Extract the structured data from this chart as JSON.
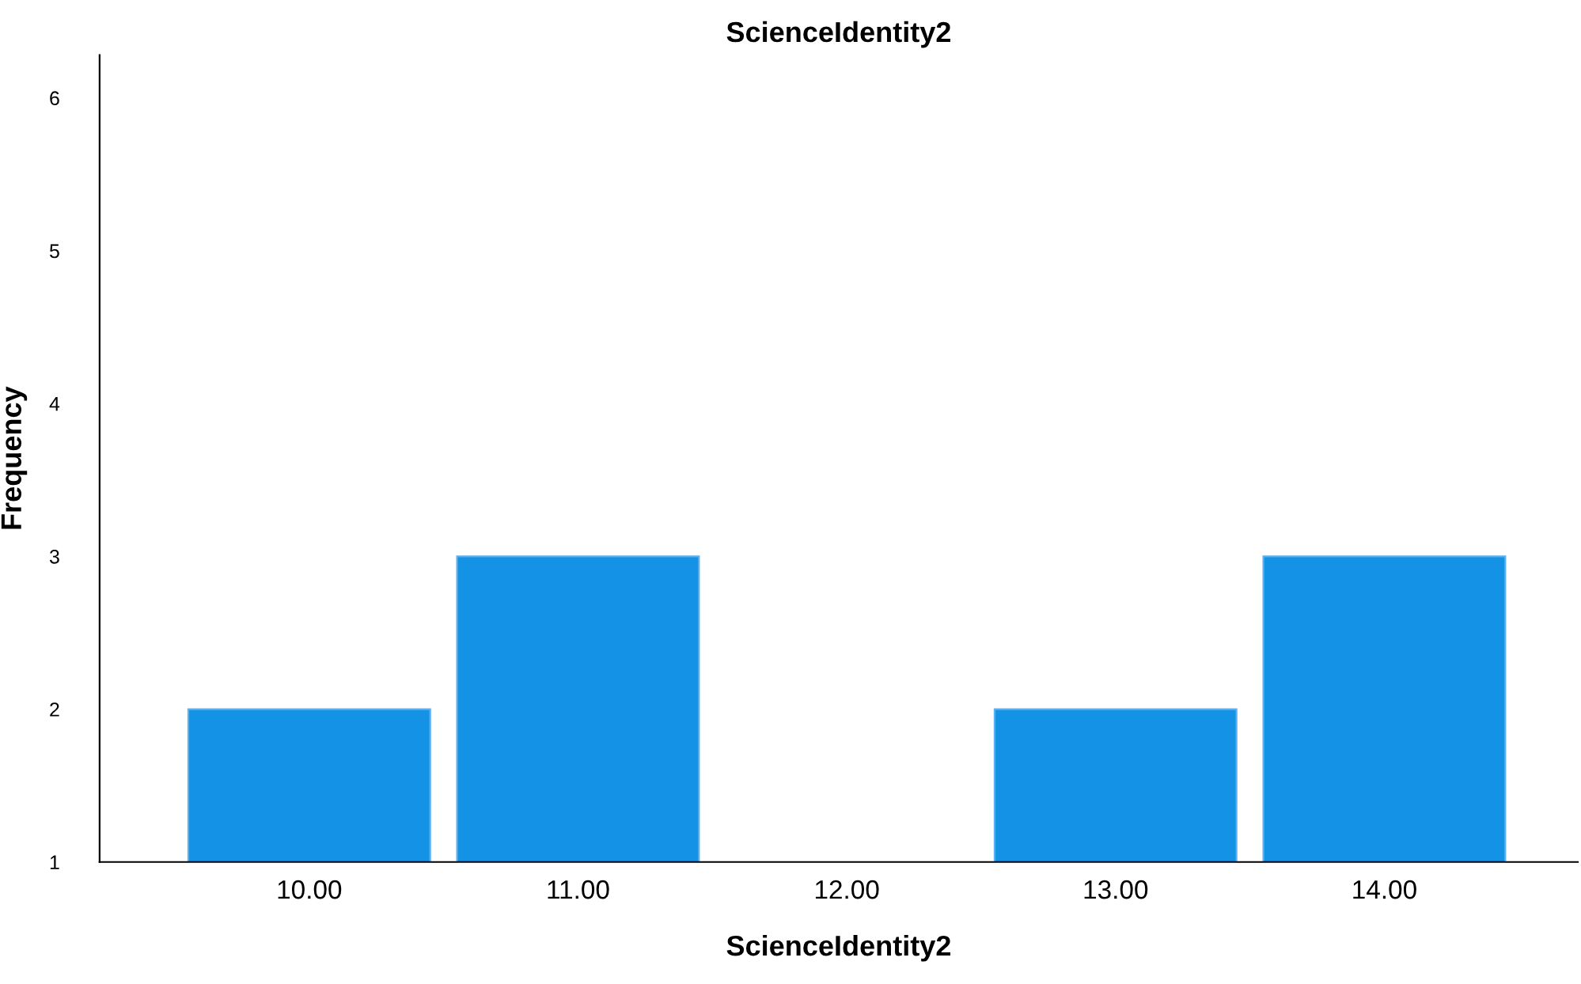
{
  "chart_data": {
    "type": "bar",
    "title": "ScienceIdentity2",
    "xlabel": "ScienceIdentity2",
    "ylabel": "Frequency",
    "categories": [
      "10.00",
      "11.00",
      "12.00",
      "13.00",
      "14.00"
    ],
    "values": [
      2,
      3,
      null,
      2,
      3
    ],
    "color": "#1492e6",
    "ylim": [
      1,
      6.28
    ],
    "yticks": [
      1,
      2,
      3,
      4,
      5,
      6
    ],
    "grid": false,
    "legend": false
  }
}
